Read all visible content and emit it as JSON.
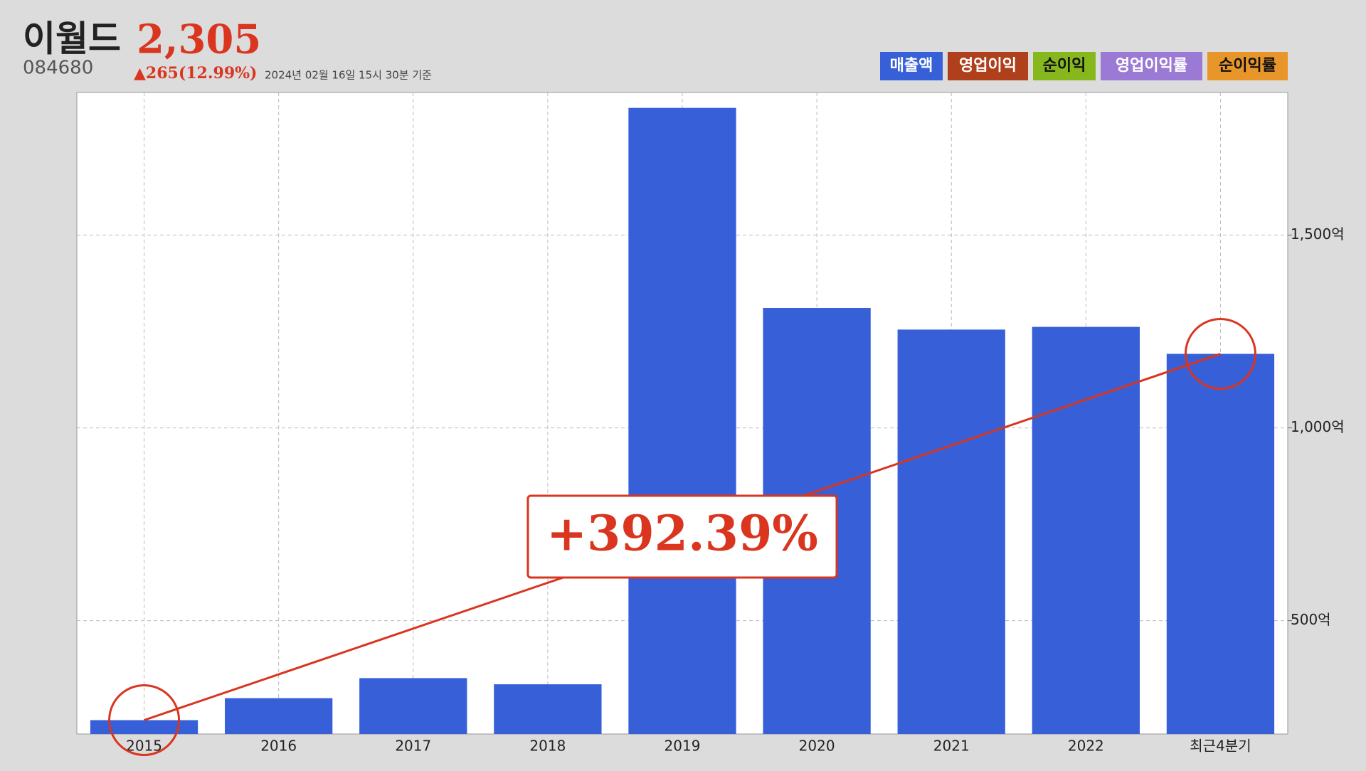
{
  "chart_data": {
    "type": "bar",
    "title": "이월드",
    "price": "2,305",
    "code": "084680",
    "change": "▲265(12.99%)",
    "timestamp": "2024년 02월 16일 15시 30분 기준",
    "categories": [
      "2015",
      "2016",
      "2017",
      "2018",
      "2019",
      "2020",
      "2021",
      "2022",
      "최근4분기"
    ],
    "series": [
      {
        "name": "매출액",
        "color": "#3760d8",
        "values": [
          242,
          299,
          351,
          335,
          1830,
          1311,
          1255,
          1262,
          1192
        ]
      }
    ],
    "legend_extra": [
      {
        "name": "영업이익",
        "color": "#b0401c"
      },
      {
        "name": "순이익",
        "color": "#86b81e"
      },
      {
        "name": "영업이익률",
        "color": "#9b7ad6"
      },
      {
        "name": "순이익률",
        "color": "#e8962a"
      }
    ],
    "annotation": "+392.39%",
    "ylim": [
      206,
      1870
    ],
    "yticks": [
      {
        "value": 500,
        "label": "500억"
      },
      {
        "value": 1000,
        "label": "1,000억"
      },
      {
        "value": 1500,
        "label": "1,500억"
      }
    ],
    "grid": true
  }
}
